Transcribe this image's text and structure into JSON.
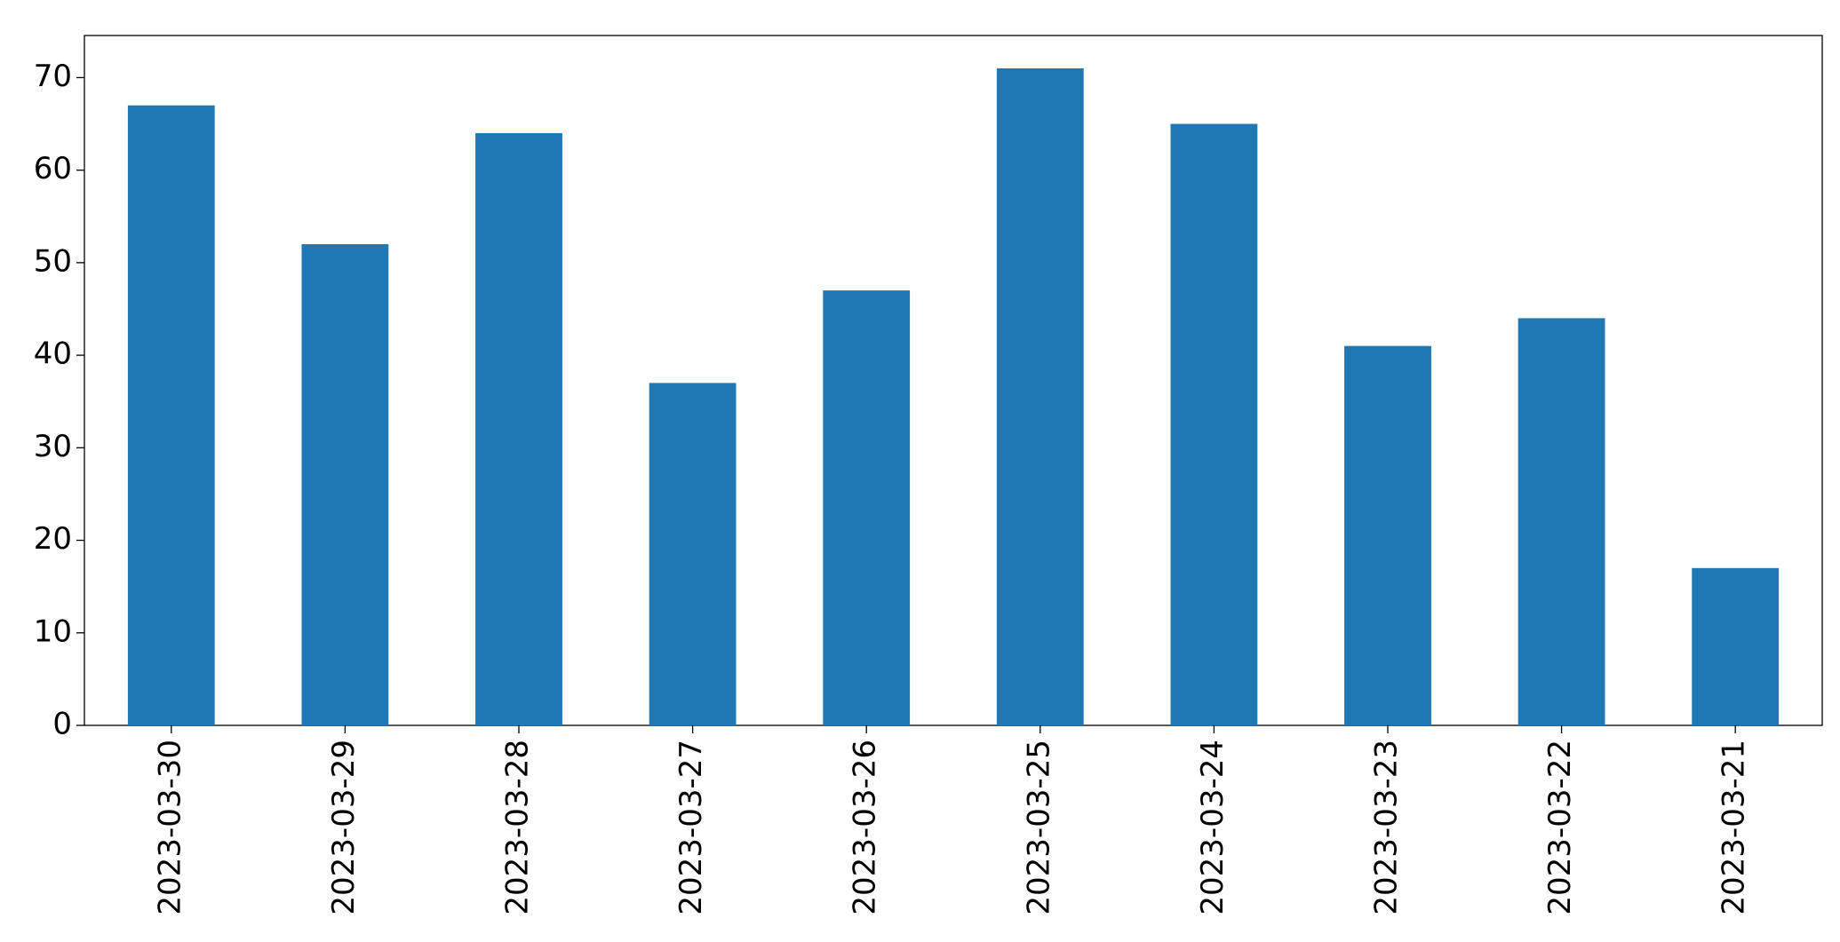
{
  "chart_data": {
    "type": "bar",
    "categories": [
      "2023-03-30",
      "2023-03-29",
      "2023-03-28",
      "2023-03-27",
      "2023-03-26",
      "2023-03-25",
      "2023-03-24",
      "2023-03-23",
      "2023-03-22",
      "2023-03-21"
    ],
    "values": [
      67,
      52,
      64,
      37,
      47,
      71,
      65,
      41,
      44,
      17
    ],
    "color": "#1f77b4",
    "ylim": [
      0,
      74.55
    ],
    "yticks": [
      0,
      10,
      20,
      30,
      40,
      50,
      60,
      70
    ],
    "grid": false
  }
}
